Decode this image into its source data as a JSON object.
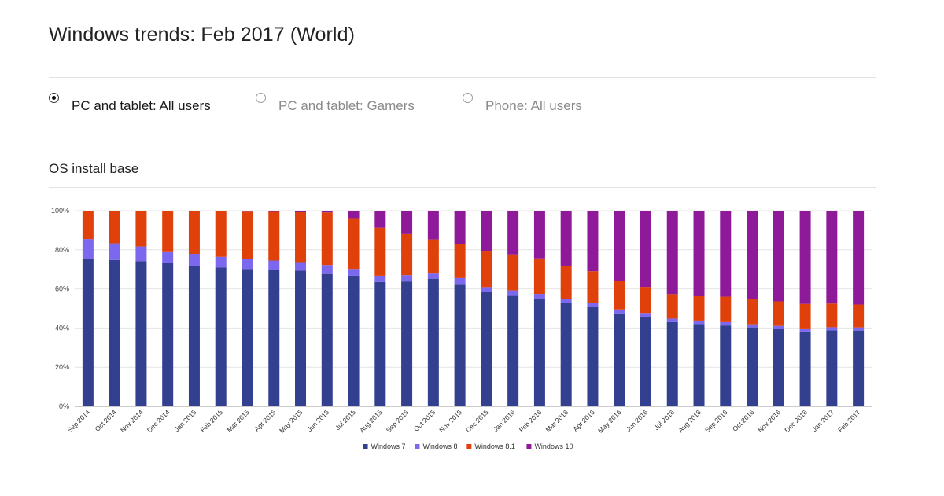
{
  "page": {
    "title": "Windows trends: Feb 2017 (World)",
    "section_title": "OS install base"
  },
  "radio_options": [
    {
      "label": "PC and tablet: All users",
      "selected": true
    },
    {
      "label": "PC and tablet: Gamers",
      "selected": false
    },
    {
      "label": "Phone: All users",
      "selected": false
    }
  ],
  "chart_data": {
    "type": "bar",
    "stacked": true,
    "ylim": [
      0,
      100
    ],
    "y_ticks": [
      0,
      20,
      40,
      60,
      80,
      100
    ],
    "y_tick_labels": [
      "0%",
      "20%",
      "40%",
      "60%",
      "80%",
      "100%"
    ],
    "grid": true,
    "legend_position": "bottom",
    "categories": [
      "Sep 2014",
      "Oct 2014",
      "Nov 2014",
      "Dec 2014",
      "Jan 2015",
      "Feb 2015",
      "Mar 2015",
      "Apr 2015",
      "May 2015",
      "Jun 2015",
      "Jul 2015",
      "Aug 2015",
      "Sep 2015",
      "Oct 2015",
      "Nov 2015",
      "Dec 2015",
      "Jan 2016",
      "Feb 2016",
      "Mar 2016",
      "Apr 2016",
      "May 2016",
      "Jun 2016",
      "Jul 2016",
      "Aug 2016",
      "Sep 2016",
      "Oct 2016",
      "Nov 2016",
      "Dec 2016",
      "Jan 2017",
      "Feb 2017"
    ],
    "series": [
      {
        "name": "Windows 7",
        "color": "#333f8f",
        "values": [
          75.5,
          74.8,
          74.2,
          73.1,
          71.9,
          70.9,
          70.2,
          69.7,
          69.3,
          68.0,
          66.7,
          63.5,
          63.8,
          65.2,
          62.5,
          58.3,
          56.8,
          55.0,
          52.7,
          50.8,
          47.5,
          45.8,
          43.0,
          42.0,
          41.3,
          40.3,
          39.5,
          38.2,
          38.8,
          38.7
        ]
      },
      {
        "name": "Windows 8",
        "color": "#7b68ee",
        "values": [
          10.0,
          8.5,
          7.5,
          6.1,
          6.0,
          5.5,
          5.2,
          4.8,
          4.4,
          4.2,
          3.5,
          3.2,
          3.2,
          3.0,
          3.0,
          2.6,
          2.4,
          2.4,
          2.2,
          2.1,
          2.0,
          1.9,
          1.8,
          1.8,
          1.7,
          1.6,
          1.6,
          1.6,
          1.6,
          1.6
        ]
      },
      {
        "name": "Windows 8.1",
        "color": "#e0410b",
        "values": [
          14.5,
          16.7,
          18.3,
          20.8,
          21.9,
          23.4,
          24.1,
          24.9,
          25.5,
          26.9,
          26.0,
          24.6,
          21.0,
          17.1,
          17.6,
          18.6,
          18.4,
          18.2,
          16.8,
          16.1,
          14.5,
          13.3,
          12.5,
          12.5,
          13.0,
          13.0,
          12.5,
          12.5,
          12.1,
          11.7
        ]
      },
      {
        "name": "Windows 10",
        "color": "#8e1a9a",
        "values": [
          0,
          0,
          0,
          0,
          0.2,
          0.2,
          0.5,
          0.6,
          0.8,
          0.9,
          3.8,
          8.7,
          12.0,
          14.7,
          16.9,
          20.5,
          22.4,
          24.4,
          28.3,
          31.0,
          36.0,
          39.0,
          42.7,
          43.7,
          44.0,
          45.1,
          46.4,
          47.7,
          47.5,
          48.0
        ]
      }
    ]
  }
}
